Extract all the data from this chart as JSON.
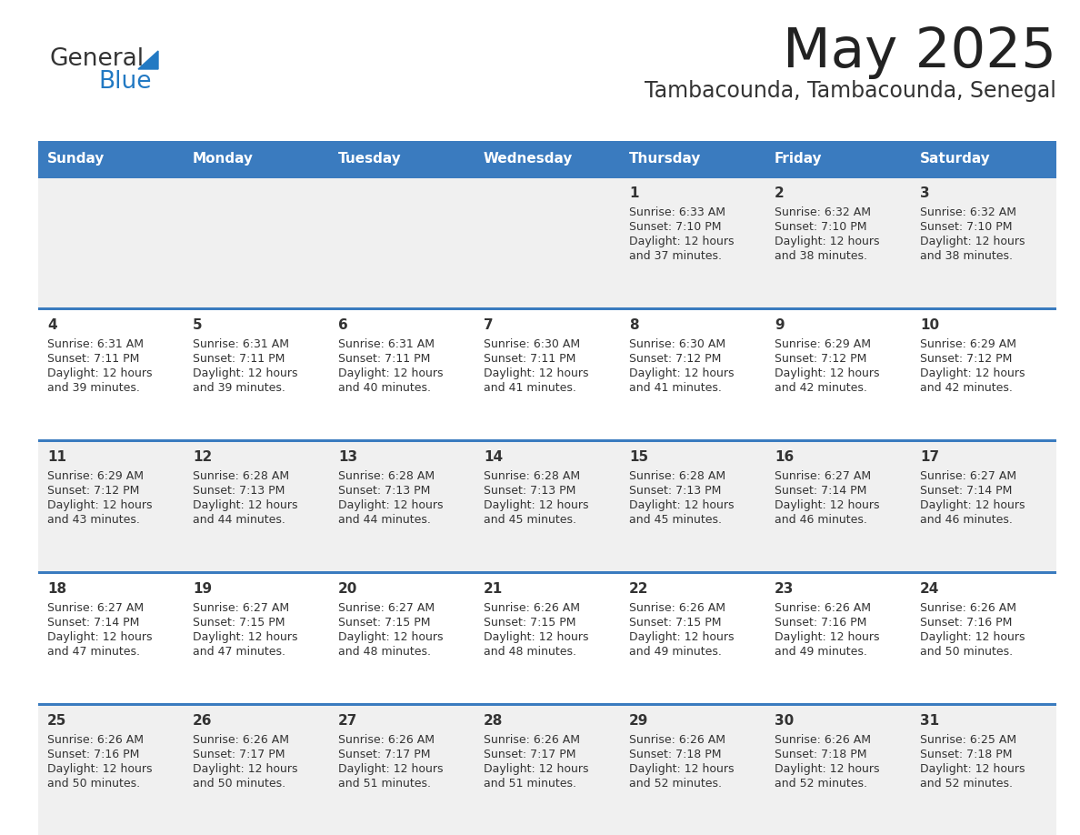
{
  "title": "May 2025",
  "subtitle": "Tambacounda, Tambacounda, Senegal",
  "days_of_week": [
    "Sunday",
    "Monday",
    "Tuesday",
    "Wednesday",
    "Thursday",
    "Friday",
    "Saturday"
  ],
  "header_bg": "#3a7bbf",
  "header_text": "#ffffff",
  "row_bg_odd": "#f0f0f0",
  "row_bg_even": "#ffffff",
  "separator_color": "#3a7bbf",
  "text_color": "#333333",
  "cell_data": [
    [
      null,
      null,
      null,
      null,
      {
        "day": 1,
        "sunrise": "6:33 AM",
        "sunset": "7:10 PM",
        "daylight": "12 hours and 37 minutes."
      },
      {
        "day": 2,
        "sunrise": "6:32 AM",
        "sunset": "7:10 PM",
        "daylight": "12 hours and 38 minutes."
      },
      {
        "day": 3,
        "sunrise": "6:32 AM",
        "sunset": "7:10 PM",
        "daylight": "12 hours and 38 minutes."
      }
    ],
    [
      {
        "day": 4,
        "sunrise": "6:31 AM",
        "sunset": "7:11 PM",
        "daylight": "12 hours and 39 minutes."
      },
      {
        "day": 5,
        "sunrise": "6:31 AM",
        "sunset": "7:11 PM",
        "daylight": "12 hours and 39 minutes."
      },
      {
        "day": 6,
        "sunrise": "6:31 AM",
        "sunset": "7:11 PM",
        "daylight": "12 hours and 40 minutes."
      },
      {
        "day": 7,
        "sunrise": "6:30 AM",
        "sunset": "7:11 PM",
        "daylight": "12 hours and 41 minutes."
      },
      {
        "day": 8,
        "sunrise": "6:30 AM",
        "sunset": "7:12 PM",
        "daylight": "12 hours and 41 minutes."
      },
      {
        "day": 9,
        "sunrise": "6:29 AM",
        "sunset": "7:12 PM",
        "daylight": "12 hours and 42 minutes."
      },
      {
        "day": 10,
        "sunrise": "6:29 AM",
        "sunset": "7:12 PM",
        "daylight": "12 hours and 42 minutes."
      }
    ],
    [
      {
        "day": 11,
        "sunrise": "6:29 AM",
        "sunset": "7:12 PM",
        "daylight": "12 hours and 43 minutes."
      },
      {
        "day": 12,
        "sunrise": "6:28 AM",
        "sunset": "7:13 PM",
        "daylight": "12 hours and 44 minutes."
      },
      {
        "day": 13,
        "sunrise": "6:28 AM",
        "sunset": "7:13 PM",
        "daylight": "12 hours and 44 minutes."
      },
      {
        "day": 14,
        "sunrise": "6:28 AM",
        "sunset": "7:13 PM",
        "daylight": "12 hours and 45 minutes."
      },
      {
        "day": 15,
        "sunrise": "6:28 AM",
        "sunset": "7:13 PM",
        "daylight": "12 hours and 45 minutes."
      },
      {
        "day": 16,
        "sunrise": "6:27 AM",
        "sunset": "7:14 PM",
        "daylight": "12 hours and 46 minutes."
      },
      {
        "day": 17,
        "sunrise": "6:27 AM",
        "sunset": "7:14 PM",
        "daylight": "12 hours and 46 minutes."
      }
    ],
    [
      {
        "day": 18,
        "sunrise": "6:27 AM",
        "sunset": "7:14 PM",
        "daylight": "12 hours and 47 minutes."
      },
      {
        "day": 19,
        "sunrise": "6:27 AM",
        "sunset": "7:15 PM",
        "daylight": "12 hours and 47 minutes."
      },
      {
        "day": 20,
        "sunrise": "6:27 AM",
        "sunset": "7:15 PM",
        "daylight": "12 hours and 48 minutes."
      },
      {
        "day": 21,
        "sunrise": "6:26 AM",
        "sunset": "7:15 PM",
        "daylight": "12 hours and 48 minutes."
      },
      {
        "day": 22,
        "sunrise": "6:26 AM",
        "sunset": "7:15 PM",
        "daylight": "12 hours and 49 minutes."
      },
      {
        "day": 23,
        "sunrise": "6:26 AM",
        "sunset": "7:16 PM",
        "daylight": "12 hours and 49 minutes."
      },
      {
        "day": 24,
        "sunrise": "6:26 AM",
        "sunset": "7:16 PM",
        "daylight": "12 hours and 50 minutes."
      }
    ],
    [
      {
        "day": 25,
        "sunrise": "6:26 AM",
        "sunset": "7:16 PM",
        "daylight": "12 hours and 50 minutes."
      },
      {
        "day": 26,
        "sunrise": "6:26 AM",
        "sunset": "7:17 PM",
        "daylight": "12 hours and 50 minutes."
      },
      {
        "day": 27,
        "sunrise": "6:26 AM",
        "sunset": "7:17 PM",
        "daylight": "12 hours and 51 minutes."
      },
      {
        "day": 28,
        "sunrise": "6:26 AM",
        "sunset": "7:17 PM",
        "daylight": "12 hours and 51 minutes."
      },
      {
        "day": 29,
        "sunrise": "6:26 AM",
        "sunset": "7:18 PM",
        "daylight": "12 hours and 52 minutes."
      },
      {
        "day": 30,
        "sunrise": "6:26 AM",
        "sunset": "7:18 PM",
        "daylight": "12 hours and 52 minutes."
      },
      {
        "day": 31,
        "sunrise": "6:25 AM",
        "sunset": "7:18 PM",
        "daylight": "12 hours and 52 minutes."
      }
    ]
  ],
  "logo_color_general": "#333333",
  "logo_color_blue": "#2279c3",
  "logo_triangle_color": "#2279c3"
}
